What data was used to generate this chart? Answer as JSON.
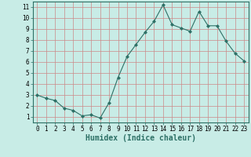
{
  "x": [
    0,
    1,
    2,
    3,
    4,
    5,
    6,
    7,
    8,
    9,
    10,
    11,
    12,
    13,
    14,
    15,
    16,
    17,
    18,
    19,
    20,
    21,
    22,
    23
  ],
  "y": [
    3.0,
    2.7,
    2.5,
    1.8,
    1.6,
    1.1,
    1.2,
    0.9,
    2.3,
    4.6,
    6.5,
    7.6,
    8.7,
    9.7,
    11.2,
    9.4,
    9.1,
    8.8,
    10.6,
    9.3,
    9.3,
    7.9,
    6.8,
    6.1
  ],
  "line_color": "#2d7066",
  "marker": "D",
  "marker_size": 2.0,
  "xlabel": "Humidex (Indice chaleur)",
  "xlim": [
    -0.5,
    23.5
  ],
  "ylim": [
    0.5,
    11.5
  ],
  "yticks": [
    1,
    2,
    3,
    4,
    5,
    6,
    7,
    8,
    9,
    10,
    11
  ],
  "xticks": [
    0,
    1,
    2,
    3,
    4,
    5,
    6,
    7,
    8,
    9,
    10,
    11,
    12,
    13,
    14,
    15,
    16,
    17,
    18,
    19,
    20,
    21,
    22,
    23
  ],
  "bg_color": "#c8ece6",
  "grid_color_major": "#cc8888",
  "grid_color_minor": "#ddaaaa",
  "tick_label_fontsize": 5.5,
  "xlabel_fontsize": 7.0,
  "spine_color": "#2d7066",
  "linewidth": 0.8
}
